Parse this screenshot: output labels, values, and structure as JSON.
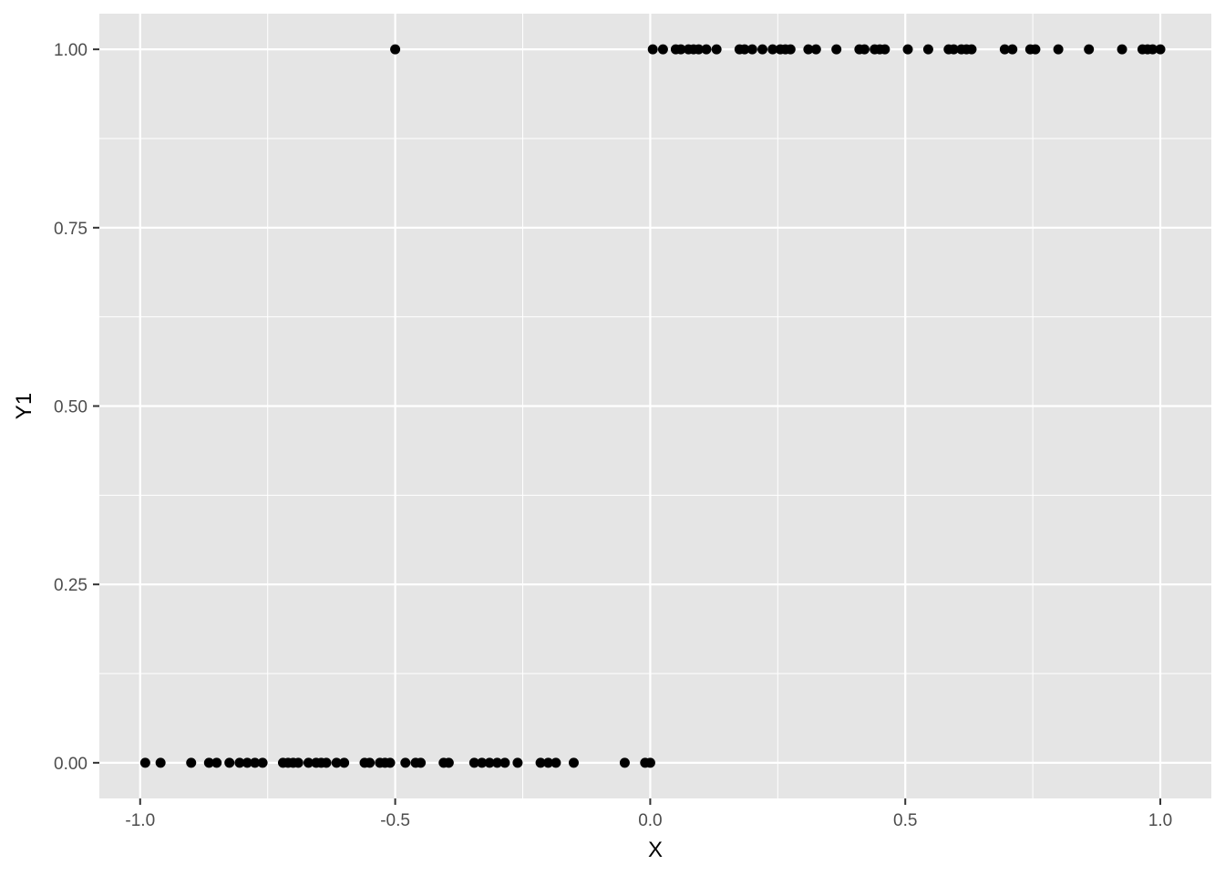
{
  "chart_data": {
    "type": "scatter",
    "xlabel": "X",
    "ylabel": "Y1",
    "xlim": [
      -1.08,
      1.1
    ],
    "ylim": [
      -0.05,
      1.05
    ],
    "x_ticks": [
      -1.0,
      -0.5,
      0.0,
      0.5,
      1.0
    ],
    "x_tick_labels": [
      "-1.0",
      "-0.5",
      "0.0",
      "0.5",
      "1.0"
    ],
    "y_ticks": [
      0.0,
      0.25,
      0.5,
      0.75,
      1.0
    ],
    "y_tick_labels": [
      "0.00",
      "0.25",
      "0.50",
      "0.75",
      "1.00"
    ],
    "grid": true,
    "legend": "none",
    "colors": {
      "panel": "#e5e5e5",
      "grid": "#ffffff",
      "point": "#000000",
      "tick": "#333333"
    },
    "points": [
      {
        "x": -0.99,
        "y": 0
      },
      {
        "x": -0.96,
        "y": 0
      },
      {
        "x": -0.9,
        "y": 0
      },
      {
        "x": -0.865,
        "y": 0
      },
      {
        "x": -0.85,
        "y": 0
      },
      {
        "x": -0.825,
        "y": 0
      },
      {
        "x": -0.805,
        "y": 0
      },
      {
        "x": -0.79,
        "y": 0
      },
      {
        "x": -0.775,
        "y": 0
      },
      {
        "x": -0.76,
        "y": 0
      },
      {
        "x": -0.72,
        "y": 0
      },
      {
        "x": -0.71,
        "y": 0
      },
      {
        "x": -0.7,
        "y": 0
      },
      {
        "x": -0.69,
        "y": 0
      },
      {
        "x": -0.67,
        "y": 0
      },
      {
        "x": -0.655,
        "y": 0
      },
      {
        "x": -0.645,
        "y": 0
      },
      {
        "x": -0.635,
        "y": 0
      },
      {
        "x": -0.615,
        "y": 0
      },
      {
        "x": -0.6,
        "y": 0
      },
      {
        "x": -0.56,
        "y": 0
      },
      {
        "x": -0.55,
        "y": 0
      },
      {
        "x": -0.53,
        "y": 0
      },
      {
        "x": -0.52,
        "y": 0
      },
      {
        "x": -0.51,
        "y": 0
      },
      {
        "x": -0.48,
        "y": 0
      },
      {
        "x": -0.46,
        "y": 0
      },
      {
        "x": -0.45,
        "y": 0
      },
      {
        "x": -0.405,
        "y": 0
      },
      {
        "x": -0.395,
        "y": 0
      },
      {
        "x": -0.345,
        "y": 0
      },
      {
        "x": -0.33,
        "y": 0
      },
      {
        "x": -0.315,
        "y": 0
      },
      {
        "x": -0.3,
        "y": 0
      },
      {
        "x": -0.285,
        "y": 0
      },
      {
        "x": -0.26,
        "y": 0
      },
      {
        "x": -0.215,
        "y": 0
      },
      {
        "x": -0.2,
        "y": 0
      },
      {
        "x": -0.185,
        "y": 0
      },
      {
        "x": -0.15,
        "y": 0
      },
      {
        "x": -0.05,
        "y": 0
      },
      {
        "x": -0.01,
        "y": 0
      },
      {
        "x": 0.0,
        "y": 0
      },
      {
        "x": -0.5,
        "y": 1
      },
      {
        "x": 0.005,
        "y": 1
      },
      {
        "x": 0.025,
        "y": 1
      },
      {
        "x": 0.05,
        "y": 1
      },
      {
        "x": 0.06,
        "y": 1
      },
      {
        "x": 0.075,
        "y": 1
      },
      {
        "x": 0.085,
        "y": 1
      },
      {
        "x": 0.095,
        "y": 1
      },
      {
        "x": 0.11,
        "y": 1
      },
      {
        "x": 0.13,
        "y": 1
      },
      {
        "x": 0.175,
        "y": 1
      },
      {
        "x": 0.185,
        "y": 1
      },
      {
        "x": 0.2,
        "y": 1
      },
      {
        "x": 0.22,
        "y": 1
      },
      {
        "x": 0.24,
        "y": 1
      },
      {
        "x": 0.255,
        "y": 1
      },
      {
        "x": 0.265,
        "y": 1
      },
      {
        "x": 0.275,
        "y": 1
      },
      {
        "x": 0.31,
        "y": 1
      },
      {
        "x": 0.325,
        "y": 1
      },
      {
        "x": 0.365,
        "y": 1
      },
      {
        "x": 0.41,
        "y": 1
      },
      {
        "x": 0.42,
        "y": 1
      },
      {
        "x": 0.44,
        "y": 1
      },
      {
        "x": 0.45,
        "y": 1
      },
      {
        "x": 0.46,
        "y": 1
      },
      {
        "x": 0.505,
        "y": 1
      },
      {
        "x": 0.545,
        "y": 1
      },
      {
        "x": 0.585,
        "y": 1
      },
      {
        "x": 0.595,
        "y": 1
      },
      {
        "x": 0.61,
        "y": 1
      },
      {
        "x": 0.62,
        "y": 1
      },
      {
        "x": 0.63,
        "y": 1
      },
      {
        "x": 0.695,
        "y": 1
      },
      {
        "x": 0.71,
        "y": 1
      },
      {
        "x": 0.745,
        "y": 1
      },
      {
        "x": 0.755,
        "y": 1
      },
      {
        "x": 0.8,
        "y": 1
      },
      {
        "x": 0.86,
        "y": 1
      },
      {
        "x": 0.925,
        "y": 1
      },
      {
        "x": 0.965,
        "y": 1
      },
      {
        "x": 0.975,
        "y": 1
      },
      {
        "x": 0.985,
        "y": 1
      },
      {
        "x": 1.0,
        "y": 1
      }
    ]
  }
}
